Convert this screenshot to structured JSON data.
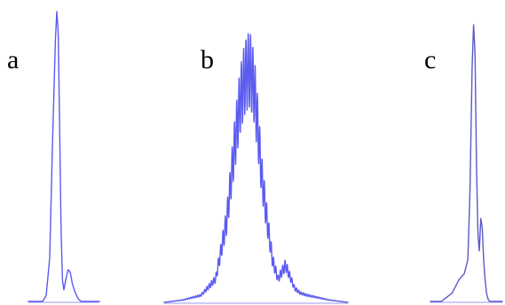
{
  "chart_data": [
    {
      "type": "line",
      "panel_label": "a",
      "xlim": [
        0,
        1
      ],
      "ylim": [
        0,
        1
      ],
      "grid": false,
      "axes_visible": false,
      "x": [
        0.0,
        0.1,
        0.2,
        0.25,
        0.3,
        0.34,
        0.38,
        0.4,
        0.42,
        0.44,
        0.46,
        0.48,
        0.5,
        0.53,
        0.56,
        0.59,
        0.62,
        0.66,
        0.7,
        0.74,
        0.78,
        0.82,
        0.88,
        0.95,
        1.0
      ],
      "series": [
        {
          "values": [
            0.0,
            0.0,
            0.0,
            0.02,
            0.15,
            0.55,
            0.9,
            1.0,
            0.93,
            0.6,
            0.25,
            0.07,
            0.04,
            0.08,
            0.11,
            0.1,
            0.06,
            0.03,
            0.01,
            0.0,
            0.0,
            0.0,
            0.0,
            0.0,
            0.0
          ]
        }
      ]
    },
    {
      "type": "line",
      "panel_label": "b",
      "xlim": [
        0,
        1
      ],
      "ylim": [
        0,
        1
      ],
      "grid": false,
      "axes_visible": false,
      "oscillating": true,
      "envelope_peak_x": 0.47,
      "x": [
        0.0,
        0.1,
        0.2,
        0.28,
        0.34,
        0.38,
        0.41,
        0.44,
        0.46,
        0.47,
        0.49,
        0.51,
        0.53,
        0.56,
        0.59,
        0.62,
        0.64,
        0.66,
        0.68,
        0.71,
        0.74,
        0.78,
        0.84,
        0.9,
        1.0
      ],
      "series": [
        {
          "values": [
            0.0,
            0.01,
            0.03,
            0.1,
            0.35,
            0.65,
            0.85,
            0.97,
            1.0,
            0.99,
            0.92,
            0.75,
            0.55,
            0.35,
            0.18,
            0.1,
            0.13,
            0.16,
            0.12,
            0.06,
            0.04,
            0.03,
            0.02,
            0.01,
            0.0
          ]
        }
      ]
    },
    {
      "type": "line",
      "panel_label": "c",
      "xlim": [
        0,
        1
      ],
      "ylim": [
        0,
        1
      ],
      "grid": false,
      "axes_visible": false,
      "x": [
        0.0,
        0.15,
        0.3,
        0.4,
        0.47,
        0.52,
        0.55,
        0.58,
        0.6,
        0.62,
        0.64,
        0.66,
        0.68,
        0.7,
        0.72,
        0.74,
        0.76,
        0.78,
        0.8,
        0.82,
        0.85,
        0.9,
        0.95,
        1.0
      ],
      "series": [
        {
          "values": [
            0.0,
            0.0,
            0.03,
            0.08,
            0.1,
            0.15,
            0.4,
            0.85,
            1.0,
            0.9,
            0.5,
            0.25,
            0.18,
            0.3,
            0.27,
            0.15,
            0.08,
            0.03,
            0.01,
            0.0,
            0.0,
            0.0,
            0.0,
            0.0
          ]
        }
      ]
    }
  ],
  "colors": {
    "trace": "#5b5bf0",
    "trace_c": "#5a5ac8",
    "baseline": "#9a9af0"
  }
}
